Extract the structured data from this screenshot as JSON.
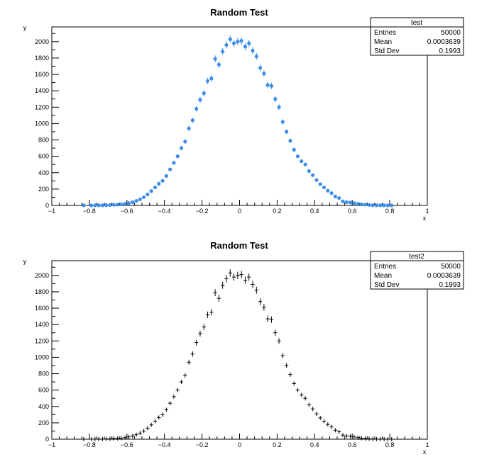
{
  "chart_data": [
    {
      "type": "scatter",
      "title": "Random Test",
      "xlabel": "x",
      "ylabel": "y",
      "xlim": [
        -1,
        1
      ],
      "ylim": [
        0,
        2180
      ],
      "xticks": [
        "−1",
        "−0.8",
        "−0.6",
        "−0.4",
        "−0.2",
        "0",
        "0.2",
        "0.4",
        "0.6",
        "0.8",
        "1"
      ],
      "yticks": [
        "0",
        "200",
        "400",
        "600",
        "800",
        "1000",
        "1200",
        "1400",
        "1600",
        "1800",
        "2000"
      ],
      "grid": false,
      "marker": "circle",
      "marker_color": "#3d8ee8",
      "stats_box": {
        "name": "test",
        "rows": [
          {
            "label": "Entries",
            "value": "50000"
          },
          {
            "label": "Mean",
            "value": "0.0003639"
          },
          {
            "label": "Std Dev",
            "value": "0.1993"
          }
        ]
      },
      "series": [
        {
          "x": [
            -0.83,
            -0.79,
            -0.77,
            -0.75,
            -0.73,
            -0.71,
            -0.69,
            -0.67,
            -0.65,
            -0.63,
            -0.61,
            -0.59,
            -0.57,
            -0.55,
            -0.53,
            -0.51,
            -0.49,
            -0.47,
            -0.45,
            -0.43,
            -0.41,
            -0.39,
            -0.37,
            -0.35,
            -0.33,
            -0.31,
            -0.29,
            -0.27,
            -0.25,
            -0.23,
            -0.21,
            -0.19,
            -0.17,
            -0.15,
            -0.13,
            -0.11,
            -0.09,
            -0.07,
            -0.05,
            -0.03,
            -0.01,
            0.01,
            0.03,
            0.05,
            0.07,
            0.09,
            0.11,
            0.13,
            0.15,
            0.17,
            0.19,
            0.21,
            0.23,
            0.25,
            0.27,
            0.29,
            0.31,
            0.33,
            0.35,
            0.37,
            0.39,
            0.41,
            0.43,
            0.45,
            0.47,
            0.49,
            0.51,
            0.53,
            0.55,
            0.57,
            0.59,
            0.61,
            0.63,
            0.65,
            0.67,
            0.69,
            0.71,
            0.73,
            0.75,
            0.77,
            0.79,
            0.81
          ],
          "y": [
            1,
            0,
            1,
            2,
            1,
            3,
            5,
            8,
            10,
            13,
            20,
            28,
            40,
            55,
            75,
            100,
            135,
            175,
            220,
            265,
            300,
            360,
            440,
            520,
            600,
            700,
            780,
            940,
            1040,
            1180,
            1290,
            1370,
            1520,
            1550,
            1790,
            1720,
            1880,
            1960,
            2030,
            1980,
            2000,
            2010,
            1940,
            1980,
            1890,
            1820,
            1680,
            1610,
            1470,
            1460,
            1300,
            1200,
            1020,
            900,
            790,
            680,
            600,
            540,
            500,
            420,
            370,
            310,
            260,
            220,
            180,
            150,
            110,
            90,
            50,
            40,
            35,
            28,
            20,
            12,
            10,
            6,
            3,
            2,
            2,
            1,
            1,
            0
          ]
        }
      ]
    },
    {
      "type": "scatter",
      "title": "Random Test",
      "xlabel": "x",
      "ylabel": "y",
      "xlim": [
        -1,
        1
      ],
      "ylim": [
        0,
        2180
      ],
      "xticks": [
        "−1",
        "−0.8",
        "−0.6",
        "−0.4",
        "−0.2",
        "0",
        "0.2",
        "0.4",
        "0.6",
        "0.8",
        "1"
      ],
      "yticks": [
        "0",
        "200",
        "400",
        "600",
        "800",
        "1000",
        "1200",
        "1400",
        "1600",
        "1800",
        "2000"
      ],
      "grid": false,
      "marker": "cross",
      "marker_color": "#000000",
      "stats_box": {
        "name": "test2",
        "rows": [
          {
            "label": "Entries",
            "value": "50000"
          },
          {
            "label": "Mean",
            "value": "0.0003639"
          },
          {
            "label": "Std Dev",
            "value": "0.1993"
          }
        ]
      },
      "series": [
        {
          "x": [
            -0.83,
            -0.79,
            -0.77,
            -0.75,
            -0.73,
            -0.71,
            -0.69,
            -0.67,
            -0.65,
            -0.63,
            -0.61,
            -0.59,
            -0.57,
            -0.55,
            -0.53,
            -0.51,
            -0.49,
            -0.47,
            -0.45,
            -0.43,
            -0.41,
            -0.39,
            -0.37,
            -0.35,
            -0.33,
            -0.31,
            -0.29,
            -0.27,
            -0.25,
            -0.23,
            -0.21,
            -0.19,
            -0.17,
            -0.15,
            -0.13,
            -0.11,
            -0.09,
            -0.07,
            -0.05,
            -0.03,
            -0.01,
            0.01,
            0.03,
            0.05,
            0.07,
            0.09,
            0.11,
            0.13,
            0.15,
            0.17,
            0.19,
            0.21,
            0.23,
            0.25,
            0.27,
            0.29,
            0.31,
            0.33,
            0.35,
            0.37,
            0.39,
            0.41,
            0.43,
            0.45,
            0.47,
            0.49,
            0.51,
            0.53,
            0.55,
            0.57,
            0.59,
            0.61,
            0.63,
            0.65,
            0.67,
            0.69,
            0.71,
            0.73,
            0.75,
            0.77,
            0.79,
            0.81
          ],
          "y": [
            1,
            0,
            1,
            2,
            1,
            3,
            5,
            8,
            10,
            13,
            20,
            28,
            40,
            55,
            75,
            100,
            135,
            175,
            220,
            265,
            300,
            360,
            440,
            520,
            600,
            700,
            780,
            940,
            1040,
            1180,
            1290,
            1370,
            1520,
            1550,
            1790,
            1720,
            1880,
            1960,
            2030,
            1980,
            2000,
            2010,
            1940,
            1980,
            1890,
            1820,
            1680,
            1610,
            1470,
            1460,
            1300,
            1200,
            1020,
            900,
            790,
            680,
            600,
            540,
            500,
            420,
            370,
            310,
            260,
            220,
            180,
            150,
            110,
            90,
            50,
            40,
            35,
            28,
            20,
            12,
            10,
            6,
            3,
            2,
            2,
            1,
            1,
            0
          ]
        }
      ]
    }
  ]
}
